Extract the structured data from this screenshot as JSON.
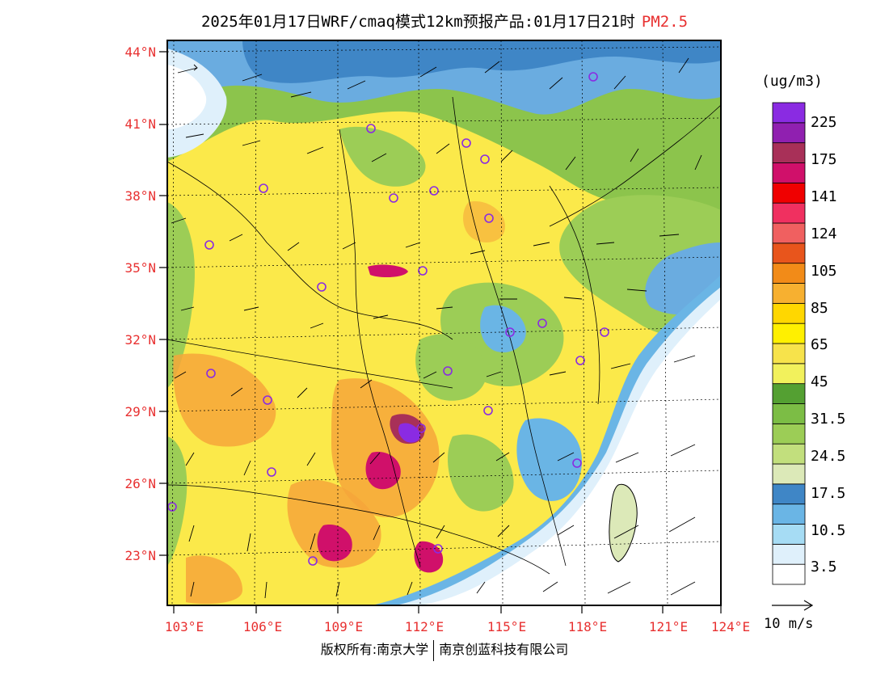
{
  "title": {
    "main": "2025年01月17日WRF/cmaq模式12km预报产品:01月17日21时",
    "pollutant": "PM2.5"
  },
  "map": {
    "lat_ticks": [
      "44°N",
      "41°N",
      "38°N",
      "35°N",
      "32°N",
      "29°N",
      "26°N",
      "23°N"
    ],
    "lon_ticks": [
      "103°E",
      "106°E",
      "109°E",
      "112°E",
      "115°E",
      "118°E",
      "121°E",
      "124°E"
    ]
  },
  "colorbar": {
    "unit": "(ug/m3)",
    "colors": [
      "#ffffff",
      "#dff0fb",
      "#a6dcf4",
      "#6ab5e5",
      "#3f86c6",
      "#dce9b8",
      "#c2df7d",
      "#9ccd56",
      "#7cbd45",
      "#54a032",
      "#f2f15c",
      "#f7e34b",
      "#fff000",
      "#ffd700",
      "#f7b030",
      "#f28b18",
      "#e8551c",
      "#f06060",
      "#f03060",
      "#f00000",
      "#d0106a",
      "#a83058",
      "#9020b0",
      "#8a2be2"
    ],
    "labels": [
      "3.5",
      "10.5",
      "17.5",
      "24.5",
      "31.5",
      "45",
      "65",
      "85",
      "105",
      "124",
      "141",
      "175",
      "225"
    ]
  },
  "wind_reference": {
    "label": "10 m/s"
  },
  "footer": {
    "copyright": "版权所有:南京大学",
    "company": "南京创蓝科技有限公司"
  },
  "colors": {
    "label_red": "#e83030",
    "ocean_white": "#ffffff",
    "low_blue": "#3f86c6",
    "mid_green": "#7cbd45",
    "yellow": "#fbe94a",
    "orange": "#f6a63a",
    "high_magenta": "#d0106a",
    "peak_purple": "#8a2be2",
    "city_marker": "#8a2be2"
  }
}
